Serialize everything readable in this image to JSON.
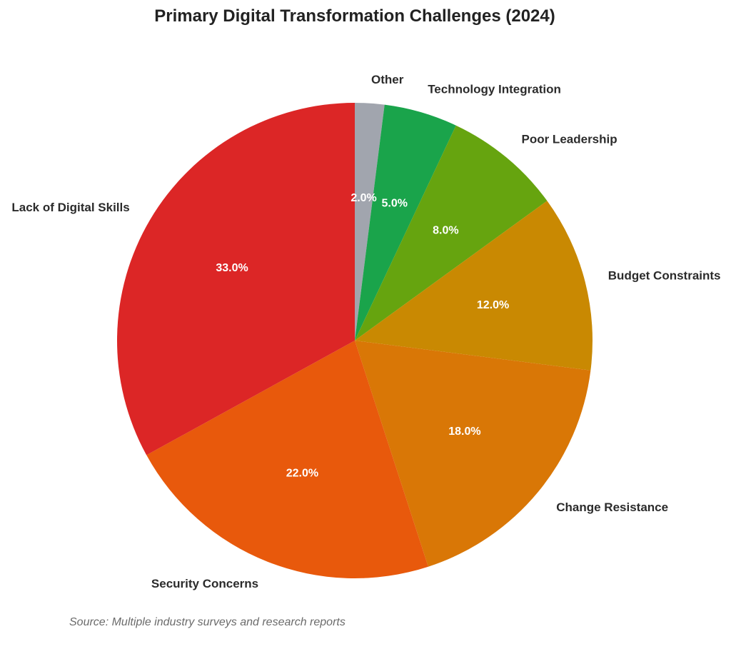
{
  "chart_data": {
    "type": "pie",
    "title": "Primary Digital Transformation Challenges (2024)",
    "source": "Source: Multiple industry surveys and research reports",
    "start_angle": "12 o'clock, clockwise",
    "slices": [
      {
        "label": "Other",
        "value": 2.0,
        "pct_label": "2.0%",
        "color": "#a1a5ae"
      },
      {
        "label": "Technology Integration",
        "value": 5.0,
        "pct_label": "5.0%",
        "color": "#1aa44b"
      },
      {
        "label": "Poor Leadership",
        "value": 8.0,
        "pct_label": "8.0%",
        "color": "#66a40f"
      },
      {
        "label": "Budget Constraints",
        "value": 12.0,
        "pct_label": "12.0%",
        "color": "#c98902"
      },
      {
        "label": "Change Resistance",
        "value": 18.0,
        "pct_label": "18.0%",
        "color": "#d97706"
      },
      {
        "label": "Security Concerns",
        "value": 22.0,
        "pct_label": "22.0%",
        "color": "#e8590c"
      },
      {
        "label": "Lack of Digital Skills",
        "value": 33.0,
        "pct_label": "33.0%",
        "color": "#dc2626"
      }
    ]
  }
}
